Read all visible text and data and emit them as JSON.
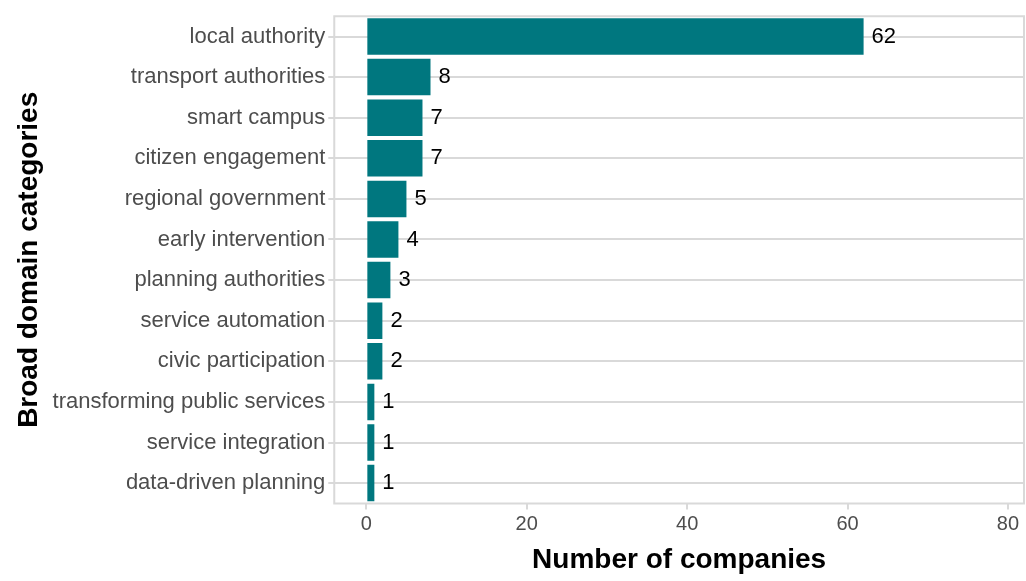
{
  "chart_data": {
    "type": "bar",
    "orientation": "horizontal",
    "xlabel": "Number of companies",
    "ylabel": "Broad domain categories",
    "categories": [
      "local authority",
      "transport authorities",
      "smart campus",
      "citizen engagement",
      "regional government",
      "early intervention",
      "planning authorities",
      "service automation",
      "civic participation",
      "transforming public services",
      "service integration",
      "data-driven planning"
    ],
    "values": [
      62,
      8,
      7,
      7,
      5,
      4,
      3,
      2,
      2,
      1,
      1,
      1
    ],
    "color": "#00777f",
    "xlim": [
      -4,
      82
    ],
    "xticks": [
      0,
      20,
      40,
      60,
      80
    ],
    "grid": "y",
    "data_labels": true,
    "legend": false
  }
}
